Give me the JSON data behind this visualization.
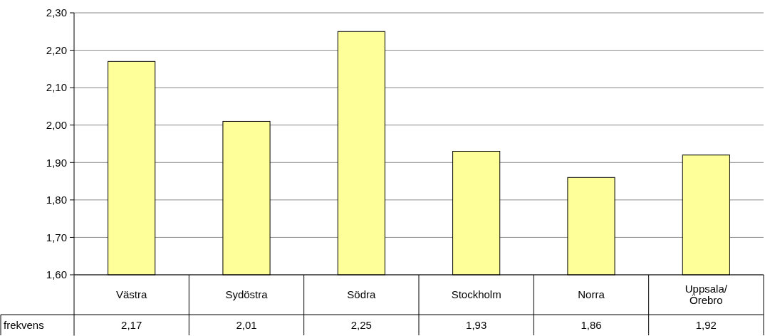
{
  "chart_data": {
    "type": "bar",
    "categories": [
      "Västra",
      "Sydöstra",
      "Södra",
      "Stockholm",
      "Norra",
      "Uppsala/\nÖrebro"
    ],
    "series": [
      {
        "name": "frekvens",
        "color": "#ffff99",
        "values": [
          2.17,
          2.01,
          2.25,
          1.93,
          1.86,
          1.92
        ]
      }
    ],
    "ylim": [
      1.6,
      2.3
    ],
    "yticks": [
      {
        "value": 1.6,
        "label": "1,60"
      },
      {
        "value": 1.7,
        "label": "1,70"
      },
      {
        "value": 1.8,
        "label": "1,80"
      },
      {
        "value": 1.9,
        "label": "1,90"
      },
      {
        "value": 2.0,
        "label": "2,00"
      },
      {
        "value": 2.1,
        "label": "2,10"
      },
      {
        "value": 2.2,
        "label": "2,20"
      },
      {
        "value": 2.3,
        "label": "2,30"
      }
    ],
    "grid": "y",
    "value_labels": [
      "2,17",
      "2,01",
      "2,25",
      "1,93",
      "1,86",
      "1,92"
    ]
  }
}
